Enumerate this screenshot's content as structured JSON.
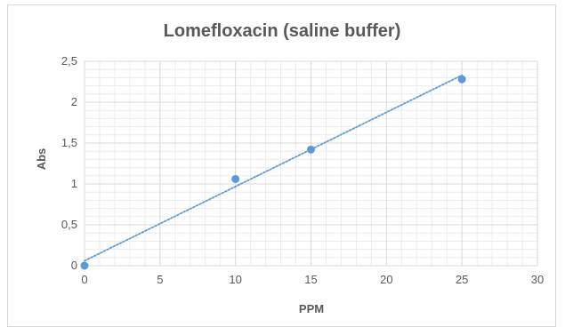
{
  "colors": {
    "marker": "#5b9bd5",
    "trendline": "#5b9bd5",
    "major_grid": "#d9d9d9",
    "minor_grid": "#ececec",
    "text": "#595959"
  },
  "chart_data": {
    "type": "scatter",
    "title": "Lomefloxacin (saline buffer)",
    "xlabel": "PPM",
    "ylabel": "Abs",
    "xlim": [
      0,
      30
    ],
    "ylim": [
      0,
      2.5
    ],
    "x_ticks": [
      "0",
      "5",
      "10",
      "15",
      "20",
      "25",
      "30"
    ],
    "y_ticks": [
      "0",
      "0,5",
      "1",
      "1,5",
      "2",
      "2,5"
    ],
    "grid": true,
    "minor_grid": true,
    "legend": "none",
    "series": [
      {
        "marker": "circle",
        "points": [
          {
            "x": 0,
            "y": 0
          },
          {
            "x": 10,
            "y": 1.06
          },
          {
            "x": 15,
            "y": 1.42
          },
          {
            "x": 25,
            "y": 2.28
          }
        ],
        "trendline": {
          "type": "linear",
          "style": "dotted",
          "from": {
            "x": 0,
            "y": 0.06
          },
          "to": {
            "x": 25,
            "y": 2.33
          }
        }
      }
    ]
  }
}
